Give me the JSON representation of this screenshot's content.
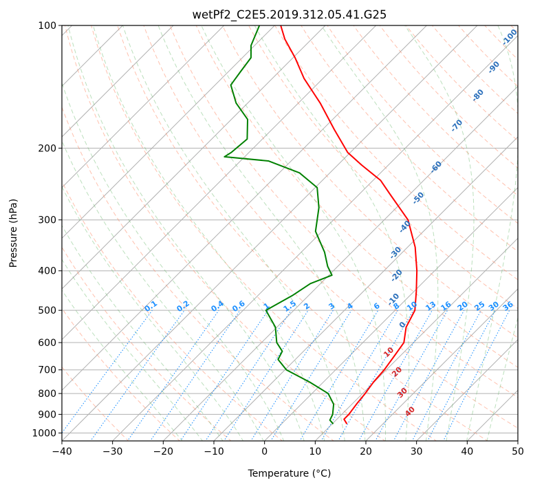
{
  "chart_data": {
    "type": "line",
    "title": "wetPf2_C2E5.2019.312.05.41.G25",
    "xlabel": "Temperature (°C)",
    "ylabel": "Pressure (hPa)",
    "xlim": [
      -40,
      50
    ],
    "ylim": [
      1050,
      100
    ],
    "y_scale": "log",
    "skew": "skew-T log-P",
    "grid": true,
    "x_ticks": [
      -40,
      -30,
      -20,
      -10,
      0,
      10,
      20,
      30,
      40,
      50
    ],
    "y_ticks": [
      100,
      200,
      300,
      400,
      500,
      600,
      700,
      800,
      900,
      1000
    ],
    "series": [
      {
        "role": "temperature",
        "color": "#ff0000",
        "points": [
          [
            12.9,
            950
          ],
          [
            11.4,
            925
          ],
          [
            11.4,
            900
          ],
          [
            10.9,
            850
          ],
          [
            10.5,
            800
          ],
          [
            9.9,
            750
          ],
          [
            9.6,
            700
          ],
          [
            8.9,
            650
          ],
          [
            8.1,
            600
          ],
          [
            5.5,
            550
          ],
          [
            3.9,
            500
          ],
          [
            0.5,
            450
          ],
          [
            -3.5,
            400
          ],
          [
            -8.5,
            350
          ],
          [
            -15.3,
            300
          ],
          [
            -23.8,
            260
          ],
          [
            -28.5,
            240
          ],
          [
            -35.3,
            220
          ],
          [
            -40.5,
            205
          ],
          [
            -47.7,
            180
          ],
          [
            -55.7,
            155
          ],
          [
            -63.7,
            135
          ],
          [
            -69.6,
            120
          ],
          [
            -75.3,
            108
          ],
          [
            -78.8,
            100
          ]
        ]
      },
      {
        "role": "dewpoint",
        "color": "#008000",
        "points": [
          [
            10.2,
            950
          ],
          [
            8.8,
            930
          ],
          [
            8.2,
            900
          ],
          [
            6.4,
            850
          ],
          [
            3.2,
            800
          ],
          [
            -2.7,
            750
          ],
          [
            -9.7,
            700
          ],
          [
            -13.4,
            660
          ],
          [
            -14.2,
            630
          ],
          [
            -17.0,
            600
          ],
          [
            -20.3,
            550
          ],
          [
            -25.5,
            500
          ],
          [
            -23.2,
            460
          ],
          [
            -22.0,
            430
          ],
          [
            -19.4,
            410
          ],
          [
            -22.0,
            390
          ],
          [
            -25.4,
            360
          ],
          [
            -31.3,
            320
          ],
          [
            -35.3,
            280
          ],
          [
            -39.6,
            250
          ],
          [
            -46.0,
            230
          ],
          [
            -54.5,
            215
          ],
          [
            -64.0,
            210
          ],
          [
            -63.5,
            205
          ],
          [
            -63.0,
            190
          ],
          [
            -66.8,
            170
          ],
          [
            -72.3,
            155
          ],
          [
            -76.9,
            140
          ],
          [
            -77.6,
            130
          ],
          [
            -78.3,
            120
          ],
          [
            -80.7,
            112
          ],
          [
            -83.0,
            100
          ]
        ]
      }
    ],
    "mixing_ratio_labels": [
      "0.1",
      "0.2",
      "0.4",
      "0.6",
      "1",
      "1.5",
      "2",
      "3",
      "4",
      "6",
      "8",
      "10",
      "13",
      "16",
      "20",
      "25",
      "30",
      "36"
    ],
    "moist_adiabat_labels": [
      "-100",
      "-90",
      "-80",
      "-70",
      "-60",
      "-50",
      "-40",
      "-30",
      "-20",
      "-10",
      "0"
    ],
    "dry_adiabat_labels": [
      "10",
      "20",
      "30",
      "40"
    ]
  }
}
